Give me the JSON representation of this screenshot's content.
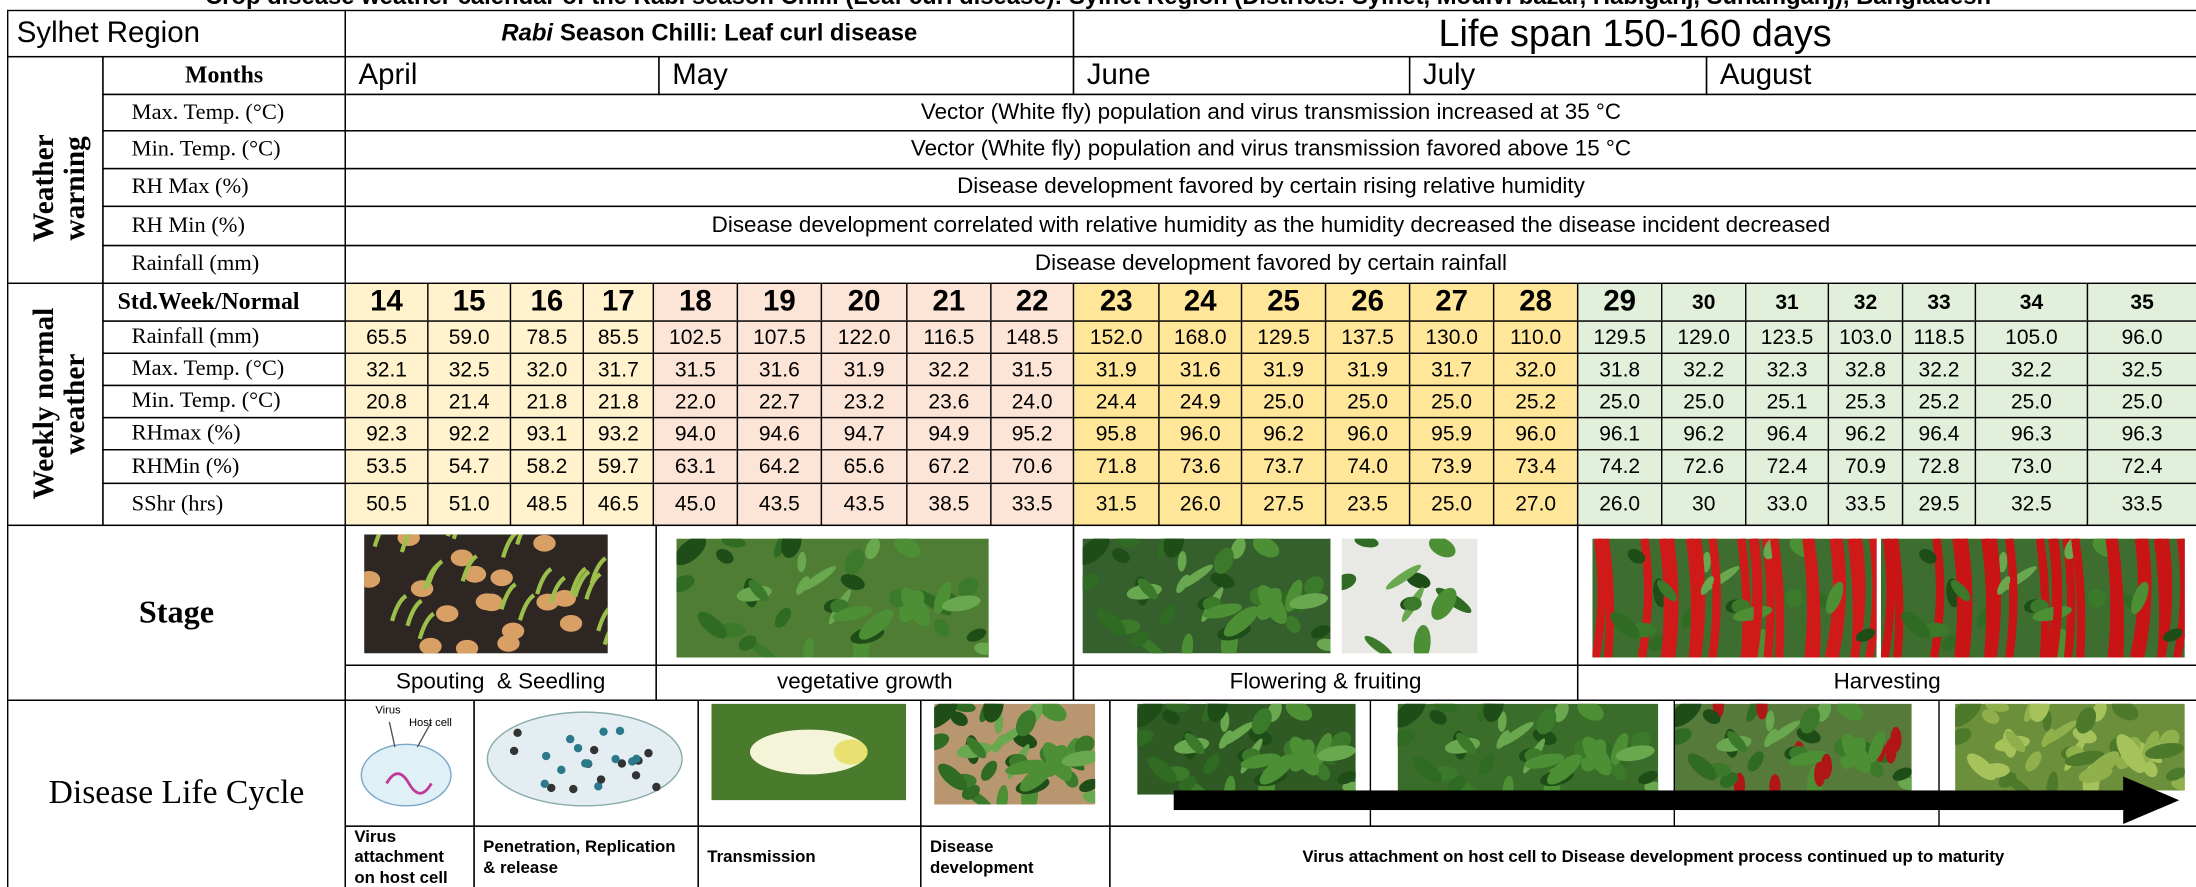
{
  "heading": "Crop disease weather calendar of the Rabi season Chilli (Leaf curl disease): Sylhet Region (Districts: Sylhet, Moulvi bazar, Habiganj, Sunamganj), Bangladesh",
  "region": "Sylhet Region",
  "season_title": {
    "italic": "Rabi",
    "rest": "Season Chilli: Leaf curl disease"
  },
  "life_span": "Life span 150-160 days",
  "months_label": "Months",
  "months": [
    "April",
    "May",
    "June",
    "July",
    "August"
  ],
  "weather_warning": {
    "label": "Weather warning",
    "rows": [
      {
        "param": "Max. Temp. (°C)",
        "note": "Vector (White fly) population and virus transmission increased at 35 °C"
      },
      {
        "param": "Min. Temp. (°C)",
        "note": "Vector (White fly) population and virus transmission favored above 15 °C"
      },
      {
        "param": "RH Max (%)",
        "note": "Disease development favored by certain rising relative humidity"
      },
      {
        "param": "RH Min (%)",
        "note": "Disease development correlated with relative humidity as the humidity decreased the disease incident decreased"
      },
      {
        "param": "Rainfall (mm)",
        "note": "Disease development favored by certain rainfall"
      }
    ]
  },
  "weekly": {
    "label": "Weekly normal weather",
    "header": "Std.Week/Normal",
    "weeks": [
      14,
      15,
      16,
      17,
      18,
      19,
      20,
      21,
      22,
      23,
      24,
      25,
      26,
      27,
      28,
      29,
      30,
      31,
      32,
      33,
      34,
      35
    ],
    "rows": [
      {
        "param": "Rainfall (mm)",
        "values": [
          "65.5",
          "59.0",
          "78.5",
          "85.5",
          "102.5",
          "107.5",
          "122.0",
          "116.5",
          "148.5",
          "152.0",
          "168.0",
          "129.5",
          "137.5",
          "130.0",
          "110.0",
          "129.5",
          "129.0",
          "123.5",
          "103.0",
          "118.5",
          "105.0",
          "96.0"
        ]
      },
      {
        "param": "Max. Temp. (°C)",
        "values": [
          "32.1",
          "32.5",
          "32.0",
          "31.7",
          "31.5",
          "31.6",
          "31.9",
          "32.2",
          "31.5",
          "31.9",
          "31.6",
          "31.9",
          "31.9",
          "31.7",
          "32.0",
          "31.8",
          "32.2",
          "32.3",
          "32.8",
          "32.2",
          "32.2",
          "32.5"
        ]
      },
      {
        "param": "Min. Temp. (°C)",
        "values": [
          "20.8",
          "21.4",
          "21.8",
          "21.8",
          "22.0",
          "22.7",
          "23.2",
          "23.6",
          "24.0",
          "24.4",
          "24.9",
          "25.0",
          "25.0",
          "25.0",
          "25.2",
          "25.0",
          "25.0",
          "25.1",
          "25.3",
          "25.2",
          "25.0",
          "25.0"
        ]
      },
      {
        "param": "RHmax (%)",
        "values": [
          "92.3",
          "92.2",
          "93.1",
          "93.2",
          "94.0",
          "94.6",
          "94.7",
          "94.9",
          "95.2",
          "95.8",
          "96.0",
          "96.2",
          "96.0",
          "95.9",
          "96.0",
          "96.1",
          "96.2",
          "96.4",
          "96.2",
          "96.4",
          "96.3",
          "96.3"
        ]
      },
      {
        "param": "RHMin (%)",
        "values": [
          "53.5",
          "54.7",
          "58.2",
          "59.7",
          "63.1",
          "64.2",
          "65.6",
          "67.2",
          "70.6",
          "71.8",
          "73.6",
          "73.7",
          "74.0",
          "73.9",
          "73.4",
          "74.2",
          "72.6",
          "72.4",
          "70.9",
          "72.8",
          "73.0",
          "72.4"
        ]
      },
      {
        "param": "SShr (hrs)",
        "values": [
          "50.5",
          "51.0",
          "48.5",
          "46.5",
          "45.0",
          "43.5",
          "43.5",
          "38.5",
          "33.5",
          "31.5",
          "26.0",
          "27.5",
          "23.5",
          "25.0",
          "27.0",
          "26.0",
          "30",
          "33.0",
          "33.5",
          "29.5",
          "32.5",
          "33.5"
        ]
      }
    ]
  },
  "stage": {
    "label": "Stage",
    "phases": [
      "Spouting  & Seedling",
      "vegetative growth",
      "Flowering & fruiting",
      "Harvesting"
    ]
  },
  "disease_life_cycle": {
    "label": "Disease Life Cycle",
    "diagram_labels": [
      "Virus",
      "Host cell"
    ],
    "steps": [
      "Virus attachment on host cell",
      "Penetration, Replication & release",
      "Transmission",
      "Disease development",
      "Virus attachment on host cell to Disease development process continued up to maturity"
    ]
  }
}
